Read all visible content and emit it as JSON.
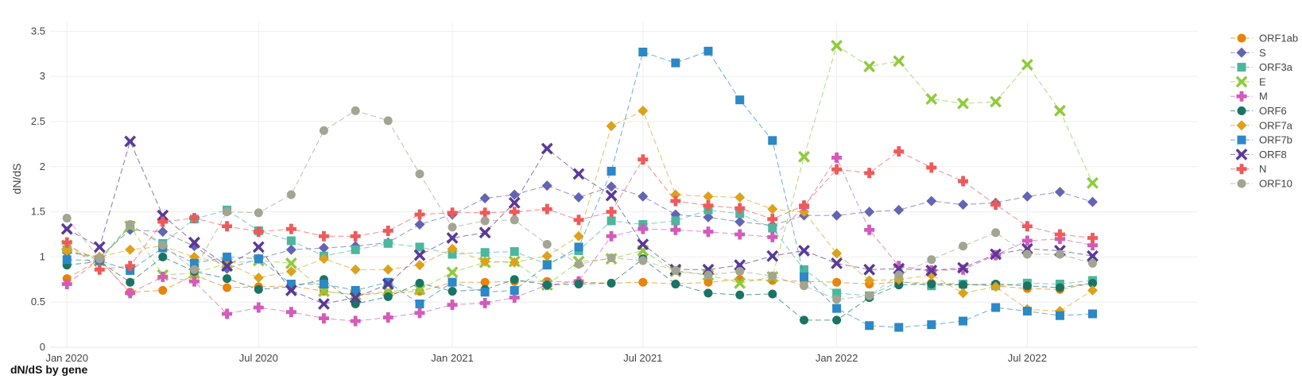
{
  "caption": "dN/dS by gene",
  "chart_data": {
    "type": "line",
    "ylabel": "dN/dS",
    "xlabel": "",
    "ylim": [
      0,
      3.6
    ],
    "xlim": [
      "2019-12-16",
      "2022-12-10"
    ],
    "grid": true,
    "legend": "right",
    "line_style": "dashed",
    "y_ticks": [
      0,
      0.5,
      1,
      1.5,
      2,
      2.5,
      3,
      3.5
    ],
    "y_tick_labels": [
      "0",
      "0.5",
      "1",
      "1.5",
      "2",
      "2.5",
      "3",
      "3.5"
    ],
    "x_ticks": [
      "2020-01-01",
      "2020-07-01",
      "2021-01-01",
      "2021-07-01",
      "2022-01-01",
      "2022-07-01"
    ],
    "x_tick_labels": [
      "Jan 2020",
      "Jul 2020",
      "Jan 2021",
      "Jul 2021",
      "Jan 2022",
      "Jul 2022"
    ],
    "x": [
      "2020-01-01",
      "2020-02-01",
      "2020-03-01",
      "2020-04-01",
      "2020-05-01",
      "2020-06-01",
      "2020-07-01",
      "2020-08-01",
      "2020-09-01",
      "2020-10-01",
      "2020-11-01",
      "2020-12-01",
      "2021-01-01",
      "2021-02-01",
      "2021-03-01",
      "2021-04-01",
      "2021-05-01",
      "2021-06-01",
      "2021-07-01",
      "2021-08-01",
      "2021-09-01",
      "2021-10-01",
      "2021-11-01",
      "2021-12-01",
      "2022-01-01",
      "2022-02-01",
      "2022-03-01",
      "2022-04-01",
      "2022-05-01",
      "2022-06-01",
      "2022-07-01",
      "2022-08-01",
      "2022-09-01"
    ],
    "series": [
      {
        "name": "ORF1ab",
        "color": "#E8830C",
        "marker": "circle",
        "values": [
          0.76,
          0.97,
          0.61,
          0.63,
          0.8,
          0.66,
          0.67,
          0.68,
          0.62,
          0.58,
          0.6,
          0.62,
          0.72,
          0.72,
          0.73,
          0.73,
          0.72,
          0.71,
          0.72,
          0.7,
          0.72,
          0.75,
          0.74,
          0.73,
          0.72,
          0.7,
          0.72,
          0.71,
          0.7,
          0.68,
          0.65,
          0.64,
          0.71
        ]
      },
      {
        "name": "S",
        "color": "#6464B4",
        "marker": "diamond",
        "values": [
          1.05,
          1.0,
          1.3,
          1.28,
          1.12,
          0.87,
          0.98,
          1.08,
          1.1,
          1.12,
          1.16,
          1.36,
          1.47,
          1.65,
          1.69,
          1.79,
          1.66,
          1.78,
          1.67,
          1.47,
          1.44,
          1.39,
          1.35,
          1.46,
          1.46,
          1.5,
          1.52,
          1.62,
          1.58,
          1.6,
          1.67,
          1.72,
          1.61
        ]
      },
      {
        "name": "ORF3a",
        "color": "#4DB69E",
        "marker": "square",
        "values": [
          1.08,
          0.96,
          1.35,
          1.15,
          1.42,
          1.52,
          1.29,
          1.18,
          1.01,
          1.08,
          1.15,
          1.11,
          1.03,
          1.05,
          1.06,
          0.92,
          1.07,
          1.4,
          1.36,
          1.4,
          1.52,
          1.48,
          1.32,
          0.86,
          0.6,
          0.57,
          0.73,
          0.68,
          0.7,
          0.68,
          0.71,
          0.7,
          0.74
        ]
      },
      {
        "name": "E",
        "color": "#8FCB3C",
        "marker": "x",
        "values": [
          1.13,
          0.96,
          1.34,
          0.8,
          0.82,
          0.93,
          0.96,
          0.93,
          0.62,
          0.58,
          0.62,
          0.64,
          0.83,
          0.94,
          0.95,
          0.69,
          0.95,
          0.98,
          1.07,
          0.84,
          0.8,
          0.71,
          0.78,
          2.11,
          3.34,
          3.11,
          3.17,
          2.75,
          2.7,
          2.72,
          3.13,
          2.62,
          1.82
        ]
      },
      {
        "name": "M",
        "color": "#D35BBA",
        "marker": "plus",
        "values": [
          0.7,
          0.97,
          0.6,
          0.78,
          0.73,
          0.37,
          0.44,
          0.39,
          0.32,
          0.29,
          0.33,
          0.38,
          0.47,
          0.49,
          0.55,
          0.69,
          0.73,
          1.23,
          1.31,
          1.3,
          1.28,
          1.25,
          1.22,
          1.55,
          2.1,
          1.3,
          0.9,
          0.85,
          0.86,
          1.02,
          1.18,
          1.2,
          1.13
        ]
      },
      {
        "name": "ORF6",
        "color": "#1A7464",
        "marker": "circle",
        "values": [
          0.91,
          0.95,
          0.72,
          1.0,
          0.84,
          0.76,
          0.64,
          0.67,
          0.75,
          0.48,
          0.56,
          0.71,
          0.62,
          0.64,
          0.75,
          0.69,
          0.7,
          0.71,
          0.98,
          0.7,
          0.6,
          0.58,
          0.59,
          0.3,
          0.3,
          0.55,
          0.69,
          0.7,
          0.69,
          0.7,
          0.68,
          0.66,
          0.71
        ]
      },
      {
        "name": "ORF7a",
        "color": "#DDA21B",
        "marker": "diamond",
        "values": [
          1.07,
          1.0,
          1.08,
          1.12,
          1.0,
          0.93,
          0.77,
          0.84,
          0.98,
          0.86,
          0.86,
          0.91,
          1.09,
          0.95,
          0.94,
          1.01,
          1.23,
          2.45,
          2.62,
          1.69,
          1.67,
          1.66,
          1.53,
          1.5,
          1.04,
          0.74,
          0.75,
          0.8,
          0.6,
          0.67,
          0.42,
          0.4,
          0.63
        ]
      },
      {
        "name": "ORF7b",
        "color": "#2C88C6",
        "marker": "square",
        "values": [
          0.97,
          0.96,
          0.85,
          1.1,
          0.93,
          1.0,
          0.98,
          0.7,
          0.7,
          0.63,
          0.72,
          0.48,
          0.72,
          0.61,
          0.63,
          0.91,
          1.11,
          1.95,
          3.27,
          3.15,
          3.28,
          2.74,
          2.29,
          0.78,
          0.43,
          0.24,
          0.22,
          0.25,
          0.29,
          0.44,
          0.4,
          0.35,
          0.37
        ]
      },
      {
        "name": "ORF8",
        "color": "#5A3A96",
        "marker": "x",
        "values": [
          1.31,
          1.11,
          2.28,
          1.46,
          1.16,
          0.9,
          1.11,
          0.63,
          0.48,
          0.55,
          0.7,
          1.02,
          1.21,
          1.27,
          1.6,
          2.2,
          1.92,
          1.68,
          1.14,
          0.86,
          0.86,
          0.91,
          1.01,
          1.07,
          0.93,
          0.86,
          0.87,
          0.85,
          0.88,
          1.03,
          1.09,
          1.07,
          1.01
        ]
      },
      {
        "name": "N",
        "color": "#EE5A5A",
        "marker": "plus",
        "values": [
          1.16,
          0.86,
          0.9,
          1.39,
          1.43,
          1.34,
          1.28,
          1.31,
          1.23,
          1.23,
          1.29,
          1.47,
          1.49,
          1.49,
          1.5,
          1.53,
          1.41,
          1.5,
          2.08,
          1.62,
          1.57,
          1.54,
          1.42,
          1.57,
          1.97,
          1.93,
          2.17,
          1.99,
          1.84,
          1.58,
          1.34,
          1.25,
          1.21
        ]
      },
      {
        "name": "ORF10",
        "color": "#A3A592",
        "marker": "circle",
        "values": [
          1.43,
          0.98,
          1.36,
          1.13,
          0.86,
          1.5,
          1.49,
          1.69,
          2.4,
          2.62,
          2.51,
          1.92,
          1.33,
          1.4,
          1.41,
          1.14,
          0.92,
          0.99,
          0.96,
          0.85,
          0.8,
          0.84,
          0.79,
          0.68,
          0.53,
          0.57,
          0.8,
          0.97,
          1.12,
          1.27,
          1.03,
          1.03,
          0.93
        ]
      }
    ]
  }
}
